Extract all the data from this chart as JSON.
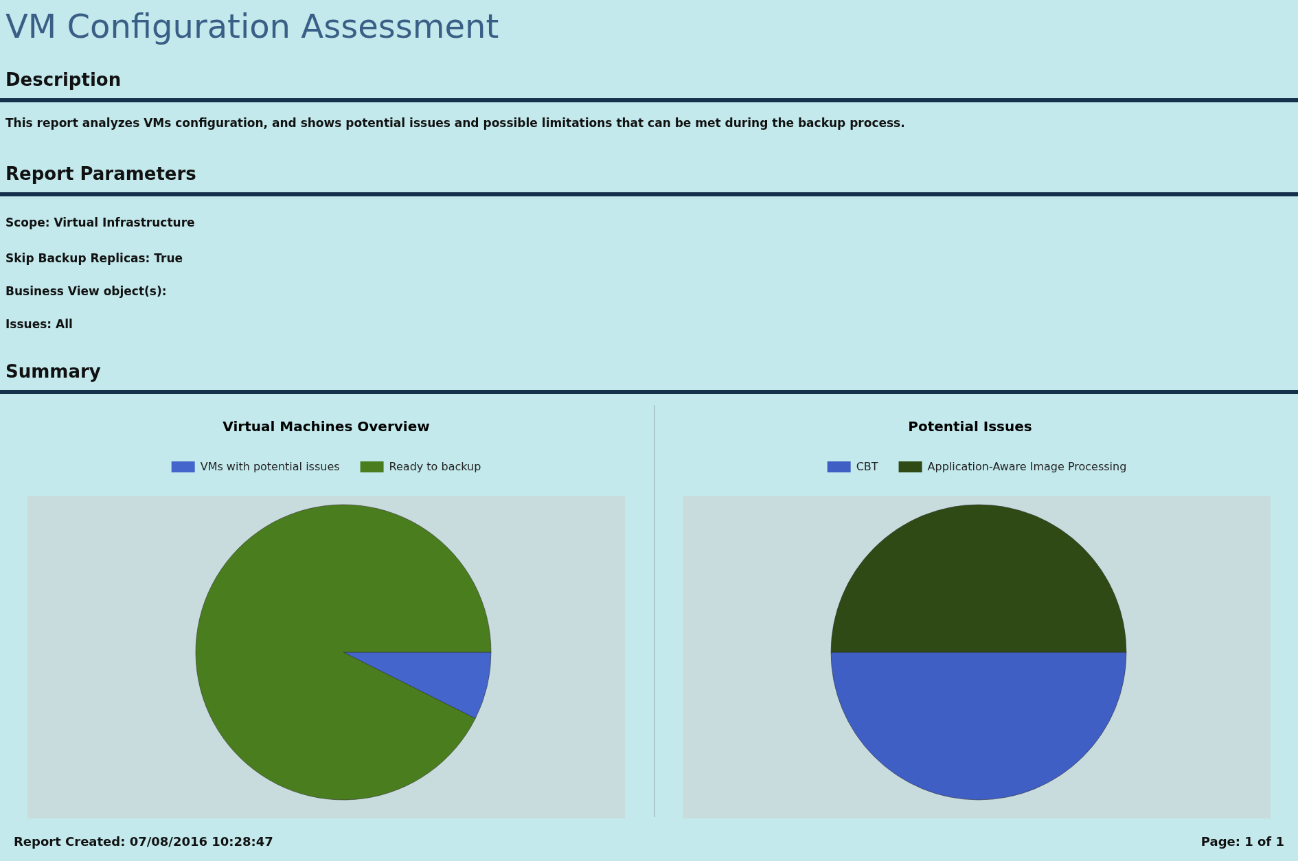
{
  "chart_data": [
    {
      "type": "other",
      "title": "VM Configuration Assessment",
      "annotations": [
        "Description",
        "This report analyzes VMs configuration, and shows potential issues and possible limitations that can be met during the backup process.",
        "Report Parameters",
        "Scope: Virtual Infrastructure",
        "Skip Backup Replicas: True",
        "Business View object(s):",
        "Issues: All",
        "Summary"
      ]
    },
    {
      "type": "pie",
      "title": "Virtual Machines Overview",
      "categories": [
        "VMs with potential issues",
        "Ready to backup"
      ],
      "values": [
        7.4,
        92.6
      ],
      "colors": [
        "#4466cc",
        "#4a7d1e"
      ],
      "legend": "top"
    },
    {
      "type": "pie",
      "title": "Potential Issues",
      "categories": [
        "CBT",
        "Application-Aware Image Processing"
      ],
      "values": [
        50,
        50
      ],
      "colors": [
        "#3f5fc4",
        "#2f4a14"
      ],
      "legend": "top"
    },
    {
      "type": "other",
      "annotations": [
        "Report Created:  07/08/2016 10:28:47",
        "Page: 1  of  1"
      ]
    }
  ]
}
